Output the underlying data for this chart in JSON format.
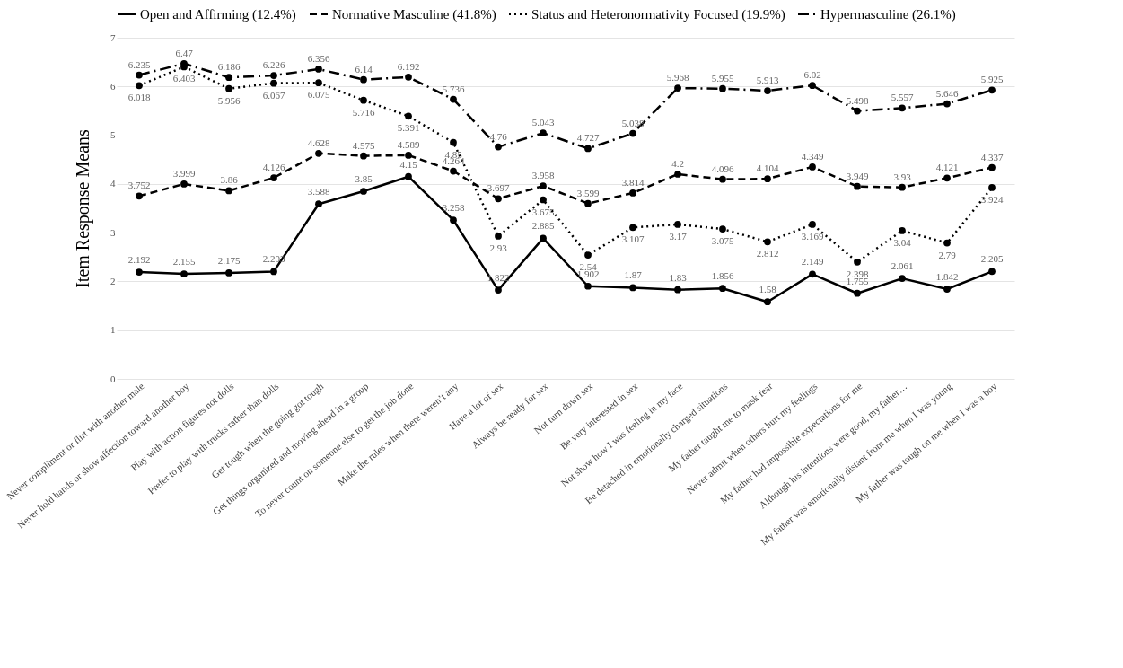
{
  "chart_data": {
    "type": "line",
    "ylabel": "Item Response Means",
    "categories": [
      "Never compliment or flirt with another male",
      "Never hold hands or show affection toward another boy",
      "Play with action figures not dolls",
      "Prefer to play with trucks rather than dolls",
      "Get tough when the going got tough",
      "Get things organized and moving ahead in a group",
      "To never count on someone else to get the job done",
      "Make the rules when there weren’t any",
      "Have a lot of sex",
      "Always be ready for sex",
      "Not turn down sex",
      "Be very interested in sex",
      "Not show how I was feeling in my face",
      "Be detached in emotionally charged situations",
      "My father taught me to mask fear",
      "Never admit when others hurt my feelings",
      "My father had impossible expectations for me",
      "Although his intentions were good, my father…",
      "My father was emotionally distant from me when I was young",
      "My father was tough on me when I was a boy"
    ],
    "series": [
      {
        "name": "Open and Affirming (12.4%)",
        "color": "#000000",
        "line_style": "solid",
        "values": [
          2.192,
          2.155,
          2.175,
          2.203,
          3.588,
          3.85,
          4.15,
          3.258,
          1.822,
          2.885,
          1.902,
          1.87,
          1.83,
          1.856,
          1.58,
          2.149,
          1.755,
          2.061,
          1.842,
          2.205
        ]
      },
      {
        "name": "Normative Masculine (41.8%)",
        "color": "#000000",
        "line_style": "dashed",
        "values": [
          3.752,
          3.999,
          3.86,
          4.126,
          4.628,
          4.575,
          4.589,
          4.264,
          3.697,
          3.958,
          3.599,
          3.814,
          4.2,
          4.096,
          4.104,
          4.349,
          3.949,
          3.93,
          4.121,
          4.337
        ]
      },
      {
        "name": "Status and Heteronormativity Focused (19.9%)",
        "color": "#000000",
        "line_style": "dotted",
        "values": [
          6.018,
          6.403,
          5.956,
          6.067,
          6.075,
          5.716,
          5.391,
          4.85,
          2.93,
          3.675,
          2.54,
          3.107,
          3.17,
          3.075,
          2.812,
          3.169,
          2.398,
          3.04,
          2.79,
          3.924
        ]
      },
      {
        "name": "Hypermasculine (26.1%)",
        "color": "#000000",
        "line_style": "dashdot",
        "values": [
          6.235,
          6.47,
          6.186,
          6.226,
          6.356,
          6.14,
          6.192,
          5.736,
          4.76,
          5.043,
          4.727,
          5.038,
          5.968,
          5.955,
          5.913,
          6.02,
          5.498,
          5.557,
          5.646,
          5.925
        ]
      }
    ],
    "ylim": [
      0,
      7
    ],
    "yticks": [
      0,
      1,
      2,
      3,
      4,
      5,
      6,
      7
    ],
    "grid": "y",
    "legend": "top",
    "marker": "circle",
    "data_labels": true
  }
}
